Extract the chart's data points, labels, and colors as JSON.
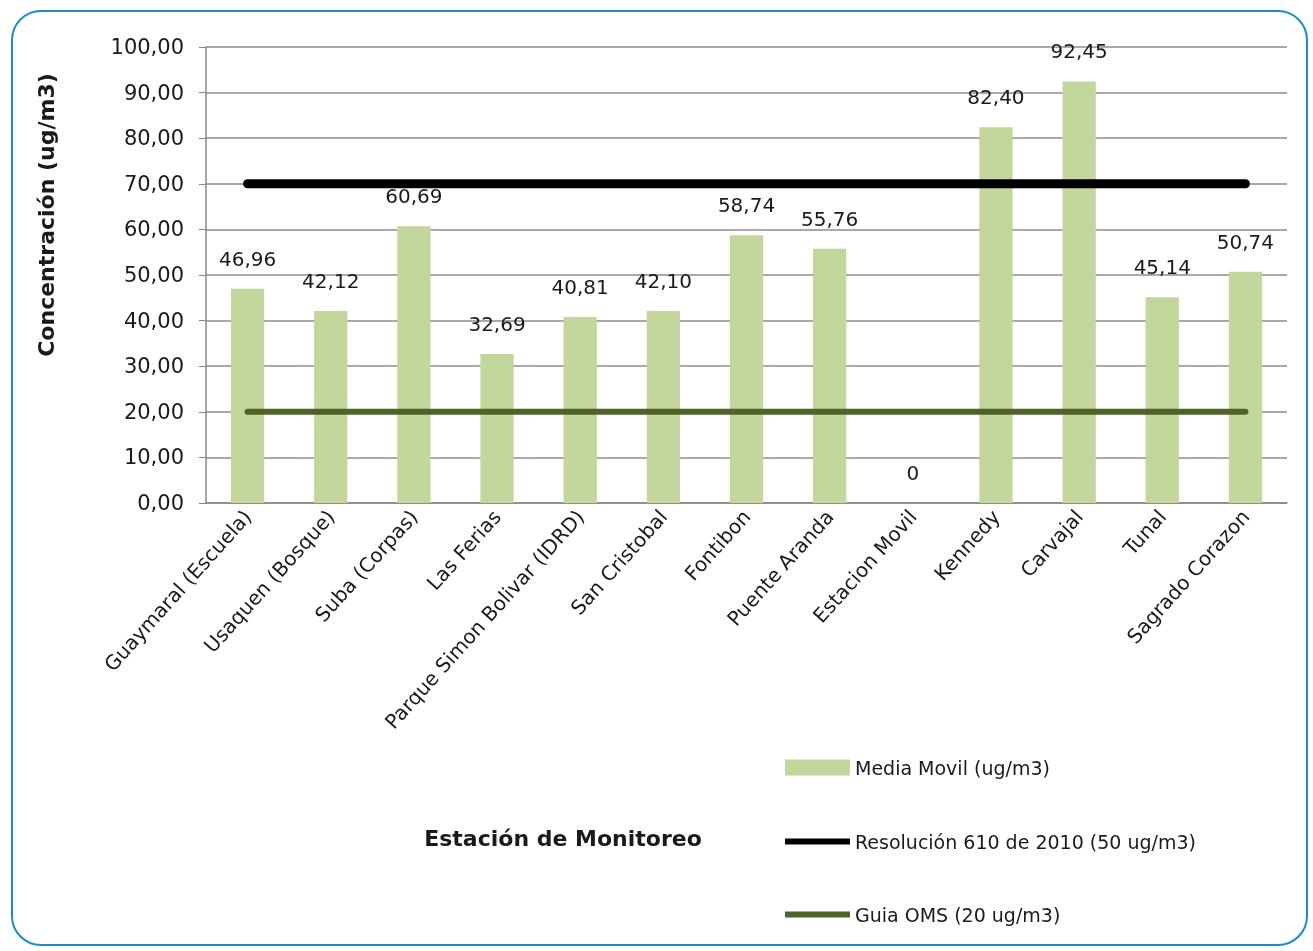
{
  "chart_data": {
    "type": "bar",
    "xlabel": "Estación de Monitoreo",
    "ylabel": "Concentración (ug/m3)",
    "categories": [
      "Guaymaral (Escuela)",
      "Usaquen (Bosque)",
      "Suba (Corpas)",
      "Las Ferias",
      "Parque Simon Bolivar (IDRD)",
      "San Cristobal",
      "Fontibon",
      "Puente Aranda",
      "Estacion Movil",
      "Kennedy",
      "Carvajal",
      "Tunal",
      "Sagrado Corazon"
    ],
    "series": [
      {
        "name": "Media Movil (ug/m3)",
        "color": "#c3d69b",
        "values": [
          46.96,
          42.12,
          60.69,
          32.69,
          40.81,
          42.1,
          58.74,
          55.76,
          0,
          82.4,
          92.45,
          45.14,
          50.74
        ],
        "value_labels": [
          "46,96",
          "42,12",
          "60,69",
          "32,69",
          "40,81",
          "42,10",
          "58,74",
          "55,76",
          "0",
          "82,40",
          "92,45",
          "45,14",
          "50,74"
        ]
      },
      {
        "name": "Resolución 610 de 2010 (50 ug/m3)",
        "type": "line",
        "color": "#000000",
        "values": [
          70,
          70,
          70,
          70,
          70,
          70,
          70,
          70,
          70,
          70,
          70,
          70,
          70
        ]
      },
      {
        "name": "Guia OMS (20 ug/m3)",
        "type": "line",
        "color": "#4f6228",
        "values": [
          20,
          20,
          20,
          20,
          20,
          20,
          20,
          20,
          20,
          20,
          20,
          20,
          20
        ]
      }
    ],
    "ylim": [
      0,
      100
    ],
    "yticks": [
      {
        "value": 0,
        "label": "0,00"
      },
      {
        "value": 10,
        "label": "10,00"
      },
      {
        "value": 20,
        "label": "20,00"
      },
      {
        "value": 30,
        "label": "30,00"
      },
      {
        "value": 40,
        "label": "40,00"
      },
      {
        "value": 50,
        "label": "50,00"
      },
      {
        "value": 60,
        "label": "60,00"
      },
      {
        "value": 70,
        "label": "70,00"
      },
      {
        "value": 80,
        "label": "80,00"
      },
      {
        "value": 90,
        "label": "90,00"
      },
      {
        "value": 100,
        "label": "100,00"
      }
    ],
    "grid": "y",
    "legend": "bottom right",
    "marker": "none"
  }
}
